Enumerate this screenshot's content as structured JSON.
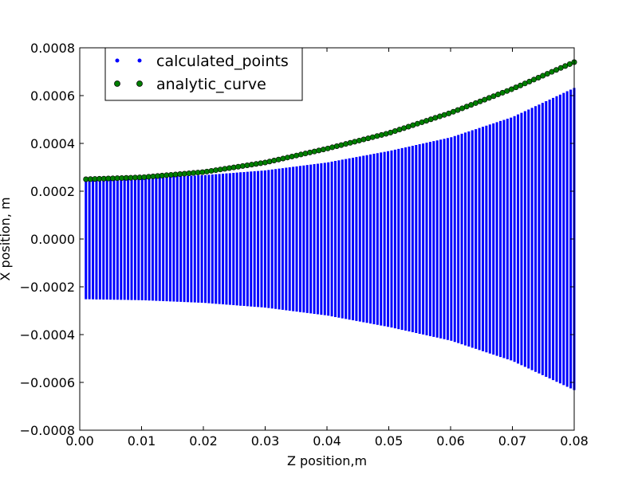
{
  "chart_data": {
    "type": "scatter",
    "title": "",
    "xlabel": "Z position,m",
    "ylabel": "X position, m",
    "xlim": [
      0.0,
      0.08
    ],
    "ylim": [
      -0.0008,
      0.0008
    ],
    "xticks": [
      "0.00",
      "0.01",
      "0.02",
      "0.03",
      "0.04",
      "0.05",
      "0.06",
      "0.07",
      "0.08"
    ],
    "yticks": [
      "−0.0008",
      "−0.0006",
      "−0.0004",
      "−0.0002",
      "0.0000",
      "0.0002",
      "0.0004",
      "0.0006",
      "0.0008"
    ],
    "grid": false,
    "legend_position": "top-left",
    "series": [
      {
        "name": "calculated_points",
        "color": "#0000ff",
        "marker": "small-dot",
        "description_x_start": 0.001,
        "description_x_end": 0.08,
        "envelope": {
          "x": [
            0.001,
            0.01,
            0.02,
            0.03,
            0.04,
            0.05,
            0.06,
            0.07,
            0.08
          ],
          "y_max": [
            0.000252,
            0.000256,
            0.000267,
            0.000287,
            0.00032,
            0.000368,
            0.000425,
            0.00051,
            0.000632
          ],
          "y_min": [
            -0.000252,
            -0.000256,
            -0.000267,
            -0.000287,
            -0.00032,
            -0.000368,
            -0.000425,
            -0.00051,
            -0.000632
          ]
        }
      },
      {
        "name": "analytic_curve",
        "color": "#007f00",
        "marker": "circle",
        "x": [
          0.001,
          0.01,
          0.02,
          0.03,
          0.04,
          0.05,
          0.06,
          0.07,
          0.08
        ],
        "y": [
          0.00025,
          0.000258,
          0.00028,
          0.00032,
          0.000378,
          0.000443,
          0.000528,
          0.000628,
          0.00074
        ]
      }
    ]
  }
}
